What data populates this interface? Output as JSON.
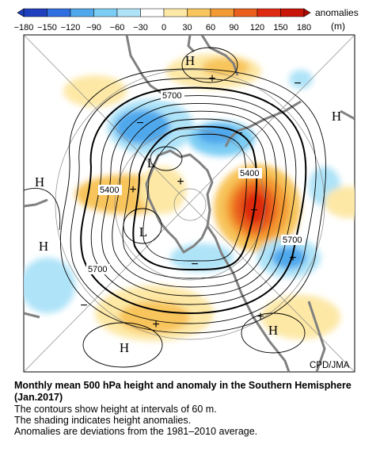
{
  "colorbar": {
    "unit_title": "anomalies",
    "unit": "(m)",
    "ticks": [
      "−180",
      "−150",
      "−120",
      "−90",
      "−60",
      "−30",
      "0",
      "30",
      "60",
      "90",
      "120",
      "150",
      "180"
    ],
    "colors": [
      "#1f3fbf",
      "#2f6fe0",
      "#4fa8ec",
      "#7ccdf4",
      "#aee3f8",
      "#ffffff",
      "#fde8a6",
      "#f8c55c",
      "#f39a32",
      "#ea5f1c",
      "#dd2a10",
      "#c81508"
    ]
  },
  "map": {
    "contour_labels": [
      "5700",
      "5400",
      "5400",
      "5700",
      "5700"
    ],
    "pressure_labels": [
      "H",
      "H",
      "H",
      "H",
      "H",
      "H",
      "L",
      "L"
    ],
    "colors": {
      "land_outline": "#808080",
      "contour": "#000000",
      "positive_anomaly": "#f8c55c",
      "strong_positive": "#dd2a10",
      "negative_anomaly": "#7ccdf4",
      "strong_negative": "#2f6fe0"
    }
  },
  "credit": "CPD/JMA",
  "caption": {
    "title": "Monthly mean 500 hPa height and anomaly in the Southern Hemisphere (Jan.2017)",
    "line1": "The contours show height at intervals of 60 m.",
    "line2": "The shading indicates height anomalies.",
    "line3": "Anomalies are deviations from the 1981–2010 average."
  }
}
